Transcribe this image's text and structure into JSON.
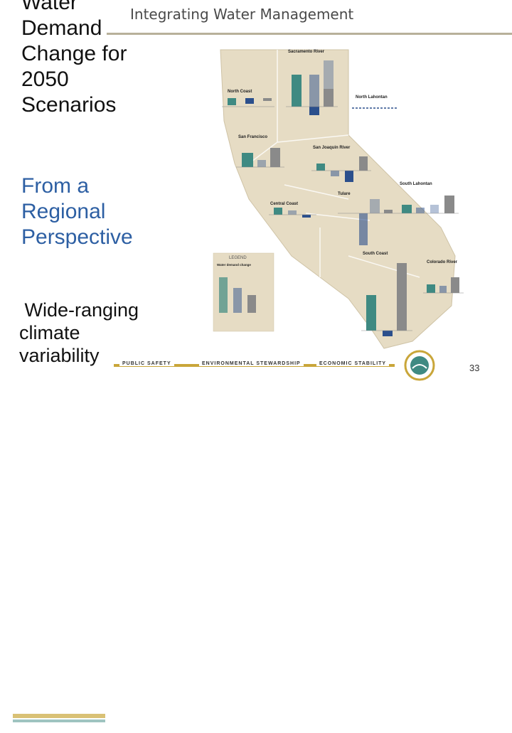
{
  "header": {
    "title": "Integrating Water Management"
  },
  "slide": {
    "title_lines": [
      "Water",
      "Demand",
      "Change for",
      "2050",
      "Scenarios"
    ],
    "subtitle_lines": [
      "From a",
      "Regional",
      "Perspective"
    ],
    "body_lines": [
      " Wide-ranging",
      "climate",
      "variability"
    ]
  },
  "map": {
    "regions": [
      {
        "name": "Sacramento River"
      },
      {
        "name": "North Coast"
      },
      {
        "name": "North Lahontan"
      },
      {
        "name": "San Francisco"
      },
      {
        "name": "San Joaquin River"
      },
      {
        "name": "Central Coast"
      },
      {
        "name": "Tulare"
      },
      {
        "name": "South Lahontan"
      },
      {
        "name": "South Coast"
      },
      {
        "name": "Colorado River"
      }
    ],
    "legend": {
      "title": "LEGEND",
      "subtitle": "Water demand change"
    }
  },
  "footer": {
    "labels": [
      "PUBLIC SAFETY",
      "ENVIRONMENTAL STEWARDSHIP",
      "ECONOMIC STABILITY"
    ],
    "page_number": "33"
  },
  "colors": {
    "map_fill": "#e6dcc4",
    "bar_teal": "#3f8a82",
    "bar_blue": "#2b4f8c",
    "bar_gray": "#8a8a8a",
    "subtitle_blue": "#2d5fa3",
    "footer_gold": "#c9a63a"
  }
}
